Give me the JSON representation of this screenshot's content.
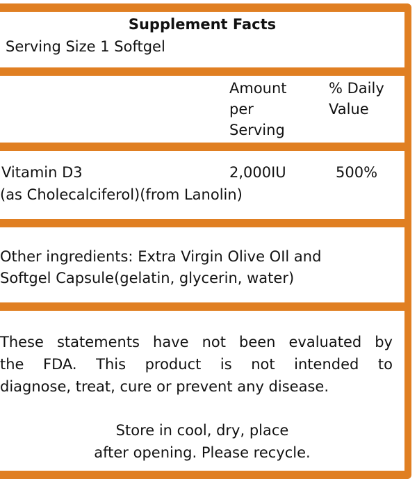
{
  "colors": {
    "border": "#e07f22",
    "text": "#111111"
  },
  "header": {
    "title": "Supplement Facts",
    "serving_size": "Serving Size 1 Softgel"
  },
  "columns": {
    "amount": [
      "Amount",
      "per",
      "Serving"
    ],
    "daily_value": [
      "% Daily",
      "Value"
    ]
  },
  "nutrients": [
    {
      "name": "Vitamin D3",
      "source": "(as Cholecalciferol)(from Lanolin)",
      "amount": "2,000IU",
      "daily_value": "500%"
    }
  ],
  "other_ingredients": [
    "Other ingredients: Extra Virgin Olive OIl and",
    "Softgel Capsule(gelatin, glycerin, water)"
  ],
  "disclaimer": [
    "These statements have not been evaluated by",
    "the FDA. This product is not intended to",
    "diagnose, treat, cure or prevent any disease."
  ],
  "storage": [
    "Store in cool, dry, place",
    "after opening. Please recycle."
  ]
}
